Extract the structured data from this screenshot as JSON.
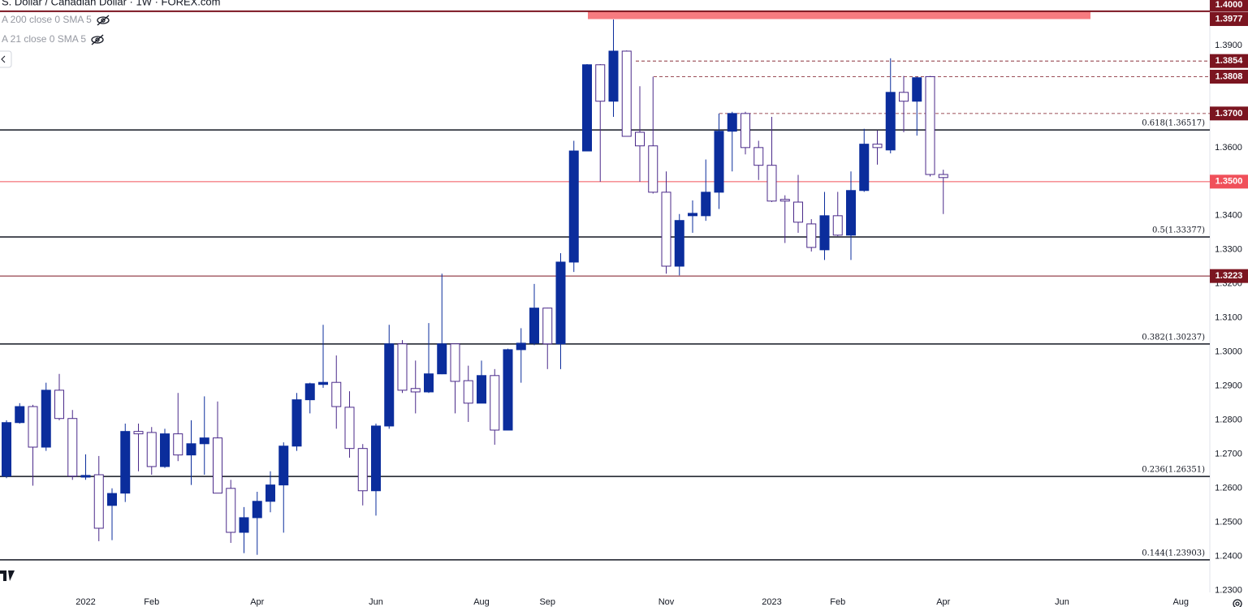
{
  "chart_data": {
    "type": "candlestick",
    "title": "S. Dollar / Canadian Dollar · 1W · FOREX.com",
    "indicators": [
      "A 200 close 0 SMA 5",
      "A 21 close 0 SMA 5"
    ],
    "categories": [
      null,
      null,
      null,
      null,
      null,
      null,
      "2022",
      null,
      null,
      null,
      null,
      "Feb",
      null,
      null,
      null,
      null,
      null,
      null,
      null,
      "Apr",
      null,
      null,
      null,
      null,
      null,
      null,
      null,
      null,
      "Jun",
      null,
      null,
      null,
      null,
      null,
      null,
      null,
      "Aug",
      null,
      null,
      null,
      null,
      "Sep",
      null,
      null,
      null,
      null,
      null,
      null,
      null,
      null,
      "Nov",
      null,
      null,
      null,
      null,
      null,
      null,
      null,
      "2023",
      null,
      null,
      null,
      null,
      "Feb",
      null,
      null,
      null,
      null,
      null,
      null,
      null,
      "Apr",
      null,
      null,
      null,
      null,
      null,
      null,
      null,
      null,
      "Jun",
      null,
      null,
      null,
      null,
      null,
      null,
      null,
      null,
      "Aug"
    ],
    "candles": {
      "up_color": "#0b2d9c",
      "down_color": "#ffffff",
      "down_border": "#4b2a8a",
      "open": [
        1.2636,
        1.2793,
        1.284,
        1.2721,
        1.2888,
        1.2805,
        1.2633,
        1.264,
        1.255,
        1.2586,
        1.2767,
        1.2764,
        1.2664,
        1.276,
        1.2698,
        1.2731,
        1.2748,
        1.26,
        1.2471,
        1.2514,
        1.2562,
        1.261,
        1.2724,
        1.286,
        1.2905,
        1.2911,
        1.2838,
        1.2717,
        1.2593,
        1.2783,
        1.3024,
        1.2893,
        1.2883,
        1.2936,
        1.3024,
        1.2916,
        1.285,
        1.2931,
        1.2771,
        1.3007,
        1.3026,
        1.3129,
        1.3024,
        1.3264,
        1.359,
        1.3843,
        1.3736,
        1.3883,
        1.3645,
        1.3605,
        1.3469,
        1.3252,
        1.34,
        1.34,
        1.3469,
        1.3648,
        1.37,
        1.36,
        1.3548,
        1.3448,
        1.344,
        1.3376,
        1.33,
        1.34,
        1.3343,
        1.3474,
        1.361,
        1.3593,
        1.3762,
        1.3736,
        1.3808,
        1.3521,
        null,
        null,
        null,
        null,
        null,
        null,
        null,
        null,
        null,
        null,
        null,
        null,
        null,
        null,
        null,
        null,
        null,
        null
      ],
      "high": [
        1.28,
        1.285,
        1.2845,
        1.291,
        1.2936,
        1.283,
        1.27,
        1.2695,
        1.26,
        1.279,
        1.279,
        1.278,
        1.2775,
        1.288,
        1.28,
        1.287,
        1.2855,
        1.2625,
        1.2545,
        1.259,
        1.265,
        1.2735,
        1.288,
        1.291,
        1.308,
        1.299,
        1.2885,
        1.273,
        1.279,
        1.308,
        1.3035,
        1.2975,
        1.3085,
        1.323,
        1.3025,
        1.296,
        1.2975,
        1.295,
        1.301,
        1.307,
        1.32,
        1.313,
        1.329,
        1.362,
        1.3845,
        1.3845,
        1.3976,
        1.3885,
        1.378,
        1.3808,
        1.353,
        1.3405,
        1.3445,
        1.3565,
        1.37,
        1.3705,
        1.3705,
        1.362,
        1.369,
        1.346,
        1.352,
        1.339,
        1.347,
        1.347,
        1.353,
        1.3655,
        1.365,
        1.3862,
        1.381,
        1.3808,
        1.381,
        1.3535,
        null,
        null,
        null,
        null,
        null,
        null,
        null,
        null,
        null,
        null,
        null,
        null,
        null,
        null,
        null,
        null,
        null,
        null
      ],
      "low": [
        1.263,
        1.279,
        1.2608,
        1.271,
        1.28,
        1.2625,
        1.2625,
        1.2445,
        1.2448,
        1.256,
        1.265,
        1.264,
        1.266,
        1.268,
        1.261,
        1.264,
        1.2586,
        1.244,
        1.241,
        1.2405,
        1.253,
        1.247,
        1.271,
        1.282,
        1.2895,
        1.2775,
        1.269,
        1.255,
        1.252,
        1.2775,
        1.288,
        1.282,
        1.288,
        1.2935,
        1.282,
        1.2795,
        1.285,
        1.2728,
        1.277,
        1.291,
        1.302,
        1.295,
        1.295,
        1.3235,
        1.359,
        1.35,
        1.369,
        1.3633,
        1.35,
        1.3465,
        1.323,
        1.3225,
        1.335,
        1.3385,
        1.342,
        1.353,
        1.358,
        1.3505,
        1.344,
        1.332,
        1.335,
        1.3295,
        1.327,
        1.334,
        1.327,
        1.347,
        1.355,
        1.3583,
        1.3645,
        1.3635,
        1.3515,
        1.3405,
        null,
        null,
        null,
        null,
        null,
        null,
        null,
        null,
        null,
        null,
        null,
        null,
        null,
        null,
        null,
        null,
        null,
        null
      ],
      "close": [
        1.2793,
        1.284,
        1.2721,
        1.2888,
        1.2805,
        1.2636,
        1.2638,
        1.2483,
        1.2585,
        1.2767,
        1.276,
        1.2664,
        1.276,
        1.2698,
        1.2731,
        1.2748,
        1.2586,
        1.2471,
        1.2514,
        1.2562,
        1.261,
        1.2724,
        1.286,
        1.2907,
        1.2911,
        1.284,
        1.2717,
        1.2593,
        1.2783,
        1.3024,
        1.2888,
        1.2883,
        1.2936,
        1.3024,
        1.2914,
        1.285,
        1.2931,
        1.2771,
        1.3007,
        1.3026,
        1.3129,
        1.3024,
        1.3264,
        1.359,
        1.3843,
        1.3736,
        1.3883,
        1.3633,
        1.3605,
        1.3469,
        1.3252,
        1.3386,
        1.3407,
        1.3469,
        1.3648,
        1.37,
        1.36,
        1.3548,
        1.3443,
        1.3443,
        1.3381,
        1.3307,
        1.34,
        1.3343,
        1.3474,
        1.361,
        1.36,
        1.3762,
        1.3736,
        1.3805,
        1.3521,
        1.3512,
        null,
        null,
        null,
        null,
        null,
        null,
        null,
        null,
        null,
        null,
        null,
        null,
        null,
        null,
        null,
        null,
        null,
        null
      ]
    },
    "ylim": [
      1.229,
      1.4033
    ],
    "yticks": [
      {
        "value": 1.39,
        "label": "1.3900"
      },
      {
        "value": 1.36,
        "label": "1.3600"
      },
      {
        "value": 1.34,
        "label": "1.3400"
      },
      {
        "value": 1.33,
        "label": "1.3300"
      },
      {
        "value": 1.32,
        "label": "1.3200"
      },
      {
        "value": 1.31,
        "label": "1.3100"
      },
      {
        "value": 1.3,
        "label": "1.3000"
      },
      {
        "value": 1.29,
        "label": "1.2900"
      },
      {
        "value": 1.28,
        "label": "1.2800"
      },
      {
        "value": 1.27,
        "label": "1.2700"
      },
      {
        "value": 1.26,
        "label": "1.2600"
      },
      {
        "value": 1.25,
        "label": "1.2500"
      },
      {
        "value": 1.24,
        "label": "1.2400"
      },
      {
        "value": 1.23,
        "label": "1.2300"
      }
    ],
    "zone": {
      "low": 1.3977,
      "high": 1.4,
      "color": "#f77b80"
    },
    "fib_levels": [
      {
        "value": 1.36517,
        "label": "0.618(1.36517)"
      },
      {
        "value": 1.33377,
        "label": "0.5(1.33377)"
      },
      {
        "value": 1.30237,
        "label": "0.382(1.30237)"
      },
      {
        "value": 1.26351,
        "label": "0.236(1.26351)"
      },
      {
        "value": 1.23903,
        "label": "0.144(1.23903)"
      }
    ],
    "price_lines": [
      {
        "value": 1.4,
        "label": "1.4000",
        "color": "#7b1520",
        "style": "solid"
      },
      {
        "value": 1.3977,
        "label": "1.3977",
        "color": "#7b1520",
        "style": "none"
      },
      {
        "value": 1.3854,
        "label": "1.3854",
        "color": "#7b1520",
        "style": "dashed"
      },
      {
        "value": 1.3808,
        "label": "1.3808",
        "color": "#7b1520",
        "style": "dashed"
      },
      {
        "value": 1.37,
        "label": "1.3700",
        "color": "#7b1520",
        "style": "dashed"
      },
      {
        "value": 1.35,
        "label": "1.3500",
        "color": "#f0505a",
        "style": "solid"
      },
      {
        "value": 1.3223,
        "label": "1.3223",
        "color": "#7b1520",
        "style": "solid"
      }
    ]
  }
}
